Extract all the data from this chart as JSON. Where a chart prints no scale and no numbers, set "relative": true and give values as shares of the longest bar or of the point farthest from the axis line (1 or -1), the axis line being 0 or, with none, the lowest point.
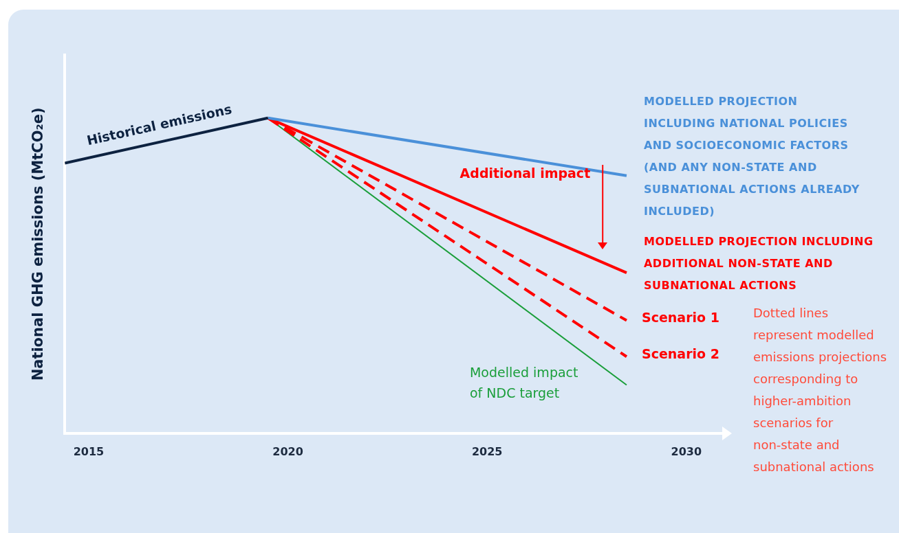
{
  "chart_data": {
    "type": "line",
    "relative": true,
    "ylabel": "National GHG emissions (MtCO₂e)",
    "xlim": [
      2014.4,
      2030.9
    ],
    "xticks": [
      2015,
      2020,
      2025,
      2030
    ],
    "grid": false,
    "legend": false,
    "marker": "none",
    "series": [
      {
        "name": "Historical emissions",
        "color": "#0d2240",
        "x": [
          2014.4,
          2019.5
        ],
        "values": [
          0.857,
          1
        ]
      },
      {
        "name": "MODELLED PROJECTION INCLUDING NATIONAL POLICIES AND SOCIOECONOMIC FACTORS (AND ANY NON-STATE AND SUBNATIONAL ACTIONS ALREADY INCLUDED)",
        "color": "#4a90d9",
        "x": [
          2019.5,
          2028.5
        ],
        "values": [
          1,
          0.817
        ]
      },
      {
        "name": "MODELLED PROJECTION INCLUDING ADDITIONAL NON-STATE AND SUBNATIONAL ACTIONS",
        "color": "#ff0000",
        "x": [
          2019.5,
          2028.5
        ],
        "values": [
          1,
          0.509
        ]
      },
      {
        "name": "Scenario 1",
        "color": "#ff0000",
        "line_style": "dashed",
        "x": [
          2019.5,
          2028.5
        ],
        "values": [
          1,
          0.358
        ]
      },
      {
        "name": "Scenario 2",
        "color": "#ff0000",
        "line_style": "dashed",
        "x": [
          2019.5,
          2028.5
        ],
        "values": [
          1,
          0.243
        ]
      },
      {
        "name": "Modelled impact of NDC target",
        "color": "#1a9e3a",
        "x": [
          2019.5,
          2028.5
        ],
        "values": [
          1,
          0.153
        ]
      }
    ],
    "annotations": [
      "Additional impact",
      "Dotted lines represent modelled emissions projections corresponding to higher-ambition scenarios for non-state and subnational actions"
    ]
  }
}
